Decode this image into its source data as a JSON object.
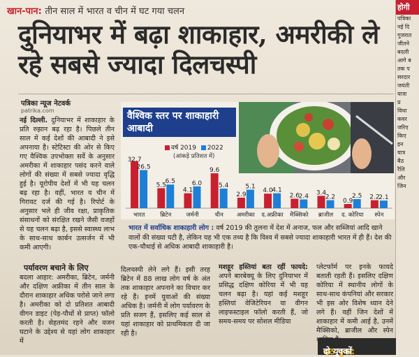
{
  "kicker": {
    "category": "खान-पान",
    "separator": ":",
    "text": "तीन साल में भारत व चीन में घट गया चलन"
  },
  "headline": "दुनियाभर में बढ़ा शाकाहार, अमरीकी ले रहे सबसे ज्यादा दिलचस्पी",
  "byline": {
    "agency": "पत्रिका न्यूज नेटवर्क",
    "site": "patrika.com"
  },
  "right_column": {
    "title": "होगी",
    "lines": [
      "पत्रिका",
      "नई दि",
      "गुजरात",
      "जीतने",
      "बदली",
      "आगे ब",
      "तक प",
      "सरदार",
      "जयंती",
      "यात्रा",
      "प्र",
      "विधा",
      "कवर",
      "जरिए",
      "किए",
      "इन",
      "यात्र",
      "बैठ",
      "रैलि",
      "और",
      "जिन"
    ]
  },
  "column1": {
    "lead": "नई दिल्ली.",
    "text": "दुनियाभर में शाकाहार के प्रति रुझान बढ़ रहा है। पिछले तीन साल में कई देशों की आबादी ने इसे अपनाया है। स्टेटिस्टा की ओर से किए गए वैश्विक उपभोक्ता सर्वे के अनुसार अमरीका में शाकाहार पसंद करने वाले लोगों की संख्या में सबसे ज्यादा वृद्धि हुई है। यूरोपीय देशों में भी यह चलन बढ़ रहा है। वहीं, भारत व चीन में गिरावट दर्ज की गई है। रिपोर्ट के अनुसार भले ही जीव रक्षा, प्राकृतिक संसाधनों को संरक्षित रखने जैसी वजहों से यह चलन बढ़ा है, इससे स्वास्थ्य लाभ के साथ-साथ कार्बन उत्सर्जन में भी कमी आएगी।"
  },
  "subhead": "पर्यावरण बचाने के लिए",
  "column1b": "बदला आहार: अमरीका, ब्रिटेन, जर्मनी और दक्षिण अफ्रीका में तीन साल के दौरान शाकाहार अधिक परोसे जाने लगा है। अमरीका को दो प्रतिशत आबादी वीगन डाइट (पेड़-पौधों से प्राप्त) फॉलो करती है। सेहतमंद रहने और वजन घटाने के उद्देश्य से यहां लोग शाकाहार में",
  "graphic": {
    "title": "वैश्विक स्तर पर शाकाहारी आबादी",
    "note": "(आंकड़े प्रतिशत में)"
  },
  "chart_data": {
    "type": "bar",
    "title": "वैश्विक स्तर पर शाकाहारी आबादी",
    "ylabel": "(आंकड़े प्रतिशत में)",
    "categories": [
      "भारत",
      "ब्रिटेन",
      "जर्मनी",
      "चीन",
      "अमरीका",
      "द.अफ्रीका",
      "मैक्सिको",
      "ब्राजील",
      "द. कोरिया",
      "स्पेन"
    ],
    "series": [
      {
        "name": "वर्ष 2019",
        "color": "#c8202f",
        "values": [
          32.7,
          5.5,
          4.1,
          9.6,
          2.9,
          4.0,
          2.6,
          3.4,
          0.9,
          2.2
        ]
      },
      {
        "name": "2022",
        "color": "#1e7fd6",
        "values": [
          26.5,
          6.5,
          6.0,
          5.4,
          5.1,
          4.1,
          2.4,
          2.2,
          2.5,
          2.1
        ]
      }
    ],
    "labels": [
      [
        "32.7",
        "26.5"
      ],
      [
        "5.5",
        "6.5"
      ],
      [
        "4.1",
        "6.0"
      ],
      [
        "9.6",
        "5.4"
      ],
      [
        "2.9",
        "5.1"
      ],
      [
        "4.0",
        "4.1"
      ],
      [
        "2.6",
        "2.4"
      ],
      [
        "3.4",
        "2.2"
      ],
      [
        "0.9",
        "2.5"
      ],
      [
        "2.2",
        "2.1"
      ]
    ],
    "legend": "top-left",
    "grid": false
  },
  "caption": {
    "lead": "भारत में सर्वाधिक शाकाहारी लोग :",
    "text": "वर्ष 2019 की तुलना में देश में अनाज, फल और सब्जियां आदि खाने वालों की संख्या घटी है, लेकिन यह भी एक तथ्य है कि विश्व में सबसे ज्यादा शाकाहारी भारत में ही हैं। देश की एक-चौथाई से अधिक आबादी शाकाहारी है।"
  },
  "column2": "दिलचस्पी लेने लगे हैं। इसी तरह ब्रिटेन में 88 लाख लोग वर्ष के अंत तक शाकाहार अपनाने का विचार कर रहे हैं। इनमें युवाओं की संख्या अधिक है। जर्मनी में लोग पर्यावरण के प्रति सजग हैं, इसलिए कई साल से यहां शाकाहार को प्राथमिकता दी जा रही है।",
  "column3": {
    "lead": "मशहूर हस्तियां बता रहीं फायदे:",
    "text": "अपने बारबेक्यू के लिए दुनियाभर में प्रसिद्ध दक्षिण कोरिया में भी यह चलन बढ़ा है। यहां कई मशहूर हस्तियां वेजिटेरियन या वीगन लाइफस्टाइल फॉलो करती हैं, जो समय-समय पर सोशल मीडिया"
  },
  "column4": "प्लेटफॉर्म पर इनके फायदे बताती रहती हैं। इसलिए दक्षिण कोरिया में स्थानीय लोगों के साथ-साथ कंपनियां और सरकार भी इस ओर विशेष ध्यान देने लगे हैं। वहीं जिन देशों में शाकाहार में कमी आई है, उनमें मैक्सिको, ब्राजील और स्पेन शामिल हैं।",
  "footer": {
    "highlight": "छठ पूजा:",
    "text": "दो युवकों"
  }
}
